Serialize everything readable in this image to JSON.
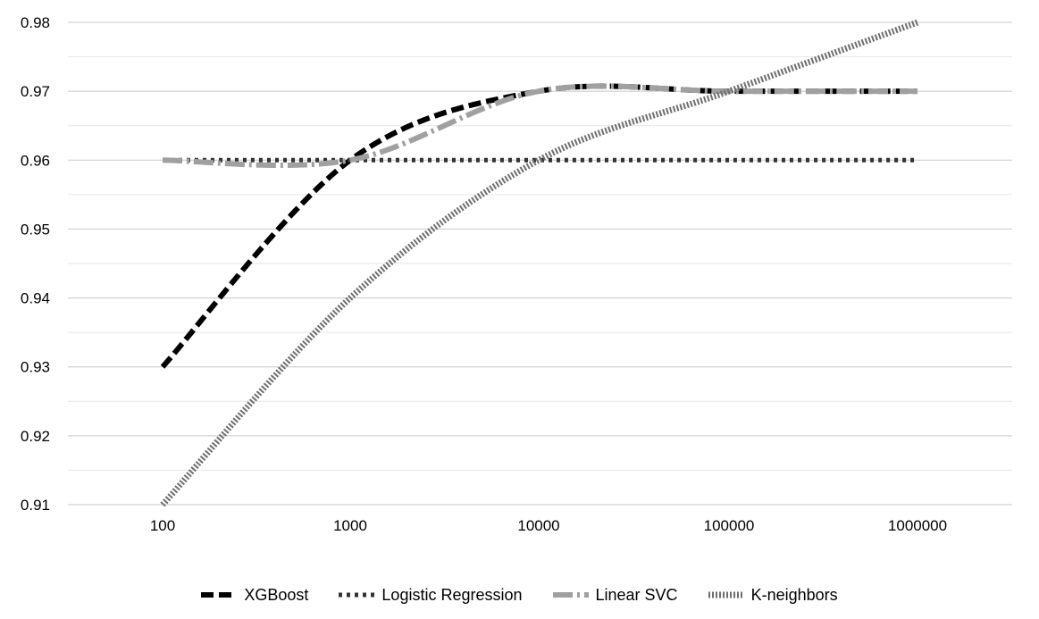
{
  "chart_data": {
    "type": "line",
    "title": "",
    "xlabel": "",
    "ylabel": "",
    "x_scale": "log",
    "x": [
      100,
      1000,
      10000,
      100000,
      1000000
    ],
    "x_tick_labels": [
      "100",
      "1000",
      "10000",
      "100000",
      "1000000"
    ],
    "y_tick_labels": [
      "0.91",
      "0.92",
      "0.93",
      "0.94",
      "0.95",
      "0.96",
      "0.97",
      "0.98"
    ],
    "ylim": [
      0.91,
      0.98
    ],
    "grid": "horizontal",
    "legend_position": "bottom",
    "series": [
      {
        "name": "XGBoost",
        "values": [
          0.93,
          0.96,
          0.97,
          0.97,
          0.97
        ],
        "color": "#000000",
        "style": "dashed"
      },
      {
        "name": "Logistic Regression",
        "values": [
          0.96,
          0.96,
          0.96,
          0.96,
          0.96
        ],
        "color": "#333333",
        "style": "dotted"
      },
      {
        "name": "Linear SVC",
        "values": [
          0.96,
          0.96,
          0.97,
          0.97,
          0.97
        ],
        "color": "#a0a0a0",
        "style": "dash-dot"
      },
      {
        "name": "K-neighbors",
        "values": [
          0.91,
          0.94,
          0.96,
          0.97,
          0.98
        ],
        "color": "#6e6e6e",
        "style": "dense-dotted"
      }
    ]
  }
}
